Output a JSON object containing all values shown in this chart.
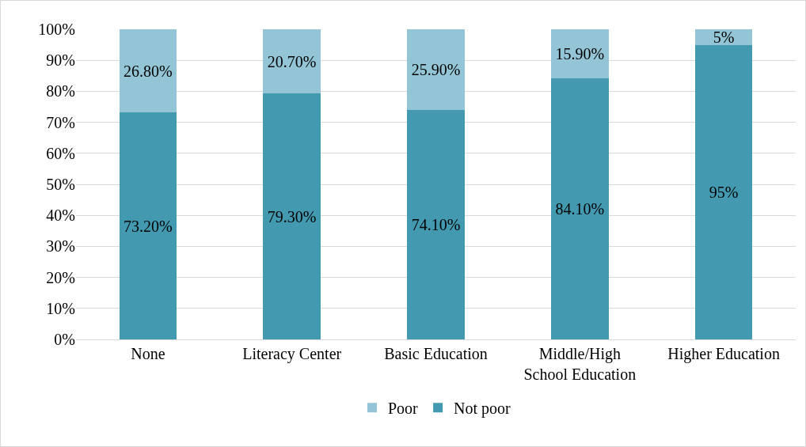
{
  "chart_data": {
    "type": "bar",
    "stacked": true,
    "categories": [
      "None",
      "Literacy Center",
      "Basic Education",
      "Middle/High School Education",
      "Higher Education"
    ],
    "series": [
      {
        "name": "Not poor",
        "color": "#4399b0",
        "values": [
          73.2,
          79.3,
          74.1,
          84.1,
          95
        ],
        "value_labels": [
          "73.20%",
          "79.30%",
          "74.10%",
          "84.10%",
          "95%"
        ]
      },
      {
        "name": "Poor",
        "color": "#93c5d6",
        "values": [
          26.8,
          20.7,
          25.9,
          15.9,
          5
        ],
        "value_labels": [
          "26.80%",
          "20.70%",
          "25.90%",
          "15.90%",
          "5%"
        ]
      }
    ],
    "ylim": [
      0,
      100
    ],
    "yticks": [
      {
        "value": 0,
        "label": "0%"
      },
      {
        "value": 10,
        "label": "10%"
      },
      {
        "value": 20,
        "label": "20%"
      },
      {
        "value": 30,
        "label": "30%"
      },
      {
        "value": 40,
        "label": "40%"
      },
      {
        "value": 50,
        "label": "50%"
      },
      {
        "value": 60,
        "label": "60%"
      },
      {
        "value": 70,
        "label": "70%"
      },
      {
        "value": 80,
        "label": "80%"
      },
      {
        "value": 90,
        "label": "90%"
      },
      {
        "value": 100,
        "label": "100%"
      }
    ],
    "grid": "y",
    "legend": "bottom"
  }
}
